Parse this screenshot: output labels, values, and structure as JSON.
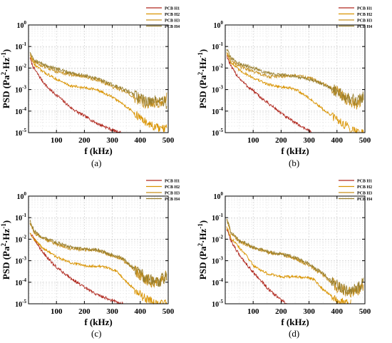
{
  "figure": {
    "captions": [
      "(a)",
      "(b)",
      "(c)",
      "(d)"
    ]
  },
  "chart_data": [
    {
      "type": "line",
      "panel": "(a)",
      "xlabel": "f (kHz)",
      "ylabel_parts": [
        "PSD (Pa",
        "2",
        "·Hz",
        "-1",
        ")"
      ],
      "xlim": [
        0,
        500
      ],
      "ylim": [
        1e-05,
        1
      ],
      "yscale": "log",
      "xticks": [
        "100",
        "200",
        "300",
        "400",
        "500"
      ],
      "yticks": [
        {
          "base": "10",
          "exp": "-5"
        },
        {
          "base": "10",
          "exp": "-4"
        },
        {
          "base": "10",
          "exp": "-3"
        },
        {
          "base": "10",
          "exp": "-2"
        },
        {
          "base": "10",
          "exp": "-1"
        },
        {
          "base": "10",
          "exp": "0"
        }
      ],
      "grid": true,
      "legend": "top-right",
      "series": [
        {
          "name": "PCB H1",
          "color": "#b0281e",
          "noise": 0.07,
          "x": [
            5,
            15,
            30,
            50,
            70,
            90,
            110,
            130,
            150,
            170,
            190,
            210,
            230,
            250,
            270,
            290,
            310,
            330
          ],
          "y": [
            0.03,
            0.012,
            0.006,
            0.0025,
            0.0012,
            0.0007,
            0.00045,
            0.00025,
            0.00015,
            0.0001,
            7e-05,
            5e-05,
            3.5e-05,
            2.5e-05,
            2e-05,
            1.5e-05,
            1.2e-05,
            1e-05
          ]
        },
        {
          "name": "PCB H2",
          "color": "#d99300",
          "noise": 0.06,
          "x": [
            5,
            20,
            50,
            100,
            150,
            200,
            230,
            260,
            280,
            300,
            330,
            360,
            390,
            420,
            450,
            470,
            485,
            495
          ],
          "y": [
            0.04,
            0.015,
            0.007,
            0.003,
            0.0015,
            0.0012,
            0.0011,
            0.0008,
            0.0006,
            0.00045,
            0.00025,
            0.00013,
            6e-05,
            3e-05,
            1.8e-05,
            1.5e-05,
            1.5e-05,
            1.5e-05
          ]
        },
        {
          "name": "PCB H3",
          "color": "#c8901e",
          "noise": 0.08,
          "x": [
            5,
            20,
            50,
            100,
            150,
            200,
            250,
            300,
            350,
            400,
            430,
            450,
            470,
            485,
            495
          ],
          "y": [
            0.05,
            0.02,
            0.012,
            0.007,
            0.005,
            0.004,
            0.0027,
            0.0014,
            0.0007,
            0.0003,
            0.00022,
            0.00025,
            0.00022,
            0.0003,
            0.0004
          ]
        },
        {
          "name": "PCB H4",
          "color": "#9a8030",
          "noise": 0.08,
          "x": [
            5,
            20,
            50,
            100,
            150,
            200,
            250,
            300,
            350,
            400,
            430,
            450,
            470,
            485,
            495
          ],
          "y": [
            0.06,
            0.025,
            0.015,
            0.009,
            0.006,
            0.0045,
            0.003,
            0.0017,
            0.0009,
            0.0004,
            0.00028,
            0.0003,
            0.0003,
            0.0003,
            0.0002
          ]
        }
      ]
    },
    {
      "type": "line",
      "panel": "(b)",
      "xlabel": "f (kHz)",
      "ylabel_parts": [
        "PSD (Pa",
        "2",
        "·Hz",
        "-1",
        ")"
      ],
      "xlim": [
        0,
        500
      ],
      "ylim": [
        1e-05,
        1
      ],
      "yscale": "log",
      "xticks": [
        "100",
        "200",
        "300",
        "400",
        "500"
      ],
      "yticks": [
        {
          "base": "10",
          "exp": "-5"
        },
        {
          "base": "10",
          "exp": "-4"
        },
        {
          "base": "10",
          "exp": "-3"
        },
        {
          "base": "10",
          "exp": "-2"
        },
        {
          "base": "10",
          "exp": "-1"
        },
        {
          "base": "10",
          "exp": "0"
        }
      ],
      "grid": true,
      "legend": "top-right",
      "series": [
        {
          "name": "PCB H1",
          "color": "#b0281e",
          "noise": 0.07,
          "x": [
            5,
            20,
            40,
            60,
            80,
            100,
            120,
            150,
            180,
            200,
            220,
            250,
            270,
            290,
            310
          ],
          "y": [
            0.04,
            0.012,
            0.005,
            0.0025,
            0.0014,
            0.0009,
            0.0005,
            0.00025,
            0.00013,
            8e-05,
            5e-05,
            3e-05,
            2e-05,
            1.5e-05,
            1e-05
          ]
        },
        {
          "name": "PCB H2",
          "color": "#d99300",
          "noise": 0.06,
          "x": [
            5,
            20,
            50,
            100,
            150,
            200,
            230,
            260,
            300,
            350,
            400,
            450,
            480,
            495
          ],
          "y": [
            0.05,
            0.018,
            0.008,
            0.0035,
            0.0018,
            0.0013,
            0.0012,
            0.0009,
            0.0004,
            0.00012,
            4e-05,
            1.5e-05,
            1e-05,
            1e-05
          ]
        },
        {
          "name": "PCB H3",
          "color": "#c8901e",
          "noise": 0.08,
          "x": [
            5,
            20,
            50,
            100,
            150,
            200,
            250,
            300,
            350,
            400,
            430,
            450,
            470,
            485,
            495
          ],
          "y": [
            0.06,
            0.02,
            0.012,
            0.007,
            0.004,
            0.004,
            0.0045,
            0.0035,
            0.002,
            0.0008,
            0.0004,
            0.0003,
            0.0002,
            0.0003,
            0.0004
          ]
        },
        {
          "name": "PCB H4",
          "color": "#9a8030",
          "noise": 0.08,
          "x": [
            5,
            20,
            50,
            100,
            150,
            200,
            250,
            300,
            350,
            400,
            430,
            450,
            470,
            485,
            495
          ],
          "y": [
            0.08,
            0.03,
            0.016,
            0.01,
            0.006,
            0.005,
            0.004,
            0.003,
            0.0018,
            0.0008,
            0.0004,
            0.00035,
            0.0003,
            0.0004,
            0.0005
          ]
        }
      ]
    },
    {
      "type": "line",
      "panel": "(c)",
      "xlabel": "f (kHz)",
      "ylabel_parts": [
        "PSD (Pa",
        "2",
        "·Hz",
        "-1",
        ")"
      ],
      "xlim": [
        0,
        500
      ],
      "ylim": [
        1e-05,
        1
      ],
      "yscale": "log",
      "xticks": [
        "100",
        "200",
        "300",
        "400",
        "500"
      ],
      "yticks": [
        {
          "base": "10",
          "exp": "-5"
        },
        {
          "base": "10",
          "exp": "-4"
        },
        {
          "base": "10",
          "exp": "-3"
        },
        {
          "base": "10",
          "exp": "-2"
        },
        {
          "base": "10",
          "exp": "-1"
        },
        {
          "base": "10",
          "exp": "0"
        }
      ],
      "grid": true,
      "legend": "top-right",
      "series": [
        {
          "name": "PCB H1",
          "color": "#b0281e",
          "noise": 0.07,
          "x": [
            5,
            20,
            40,
            60,
            80,
            100,
            130,
            160,
            190,
            220,
            250,
            280,
            310,
            330,
            340
          ],
          "y": [
            0.02,
            0.01,
            0.004,
            0.0018,
            0.0009,
            0.0005,
            0.00025,
            0.00013,
            7e-05,
            4e-05,
            2.5e-05,
            1.8e-05,
            1.3e-05,
            1e-05,
            1e-05
          ]
        },
        {
          "name": "PCB H2",
          "color": "#d99300",
          "noise": 0.06,
          "x": [
            5,
            20,
            50,
            100,
            150,
            200,
            250,
            280,
            300,
            320,
            340,
            370,
            400,
            430,
            450,
            470,
            485,
            495
          ],
          "y": [
            0.02,
            0.01,
            0.004,
            0.0015,
            0.0008,
            0.0006,
            0.00055,
            0.0005,
            0.0004,
            0.0003,
            0.00015,
            6e-05,
            2.5e-05,
            1.5e-05,
            1.2e-05,
            1e-05,
            1e-05,
            1e-05
          ]
        },
        {
          "name": "PCB H3",
          "color": "#c8901e",
          "noise": 0.08,
          "x": [
            5,
            20,
            50,
            100,
            150,
            200,
            250,
            300,
            330,
            350,
            400,
            430,
            450,
            470,
            485,
            495
          ],
          "y": [
            0.06,
            0.02,
            0.011,
            0.006,
            0.0035,
            0.0033,
            0.003,
            0.0016,
            0.0013,
            0.0008,
            0.00022,
            0.00012,
            9e-05,
            0.0001,
            0.00015,
            0.0002
          ]
        },
        {
          "name": "PCB H4",
          "color": "#9a8030",
          "noise": 0.08,
          "x": [
            5,
            20,
            50,
            100,
            150,
            200,
            250,
            300,
            330,
            350,
            400,
            430,
            450,
            470,
            485,
            495
          ],
          "y": [
            0.07,
            0.025,
            0.012,
            0.007,
            0.0042,
            0.0035,
            0.0032,
            0.0018,
            0.0014,
            0.0009,
            0.00025,
            0.00013,
            0.0001,
            0.00012,
            0.00016,
            0.00022
          ]
        }
      ]
    },
    {
      "type": "line",
      "panel": "(d)",
      "xlabel": "f (kHz)",
      "ylabel_parts": [
        "PSD (Pa",
        "2",
        "·Hz",
        "-1",
        ")"
      ],
      "xlim": [
        0,
        500
      ],
      "ylim": [
        1e-05,
        1
      ],
      "yscale": "log",
      "xticks": [
        "100",
        "200",
        "300",
        "400",
        "500"
      ],
      "yticks": [
        {
          "base": "10",
          "exp": "-5"
        },
        {
          "base": "10",
          "exp": "-4"
        },
        {
          "base": "10",
          "exp": "-3"
        },
        {
          "base": "10",
          "exp": "-2"
        },
        {
          "base": "10",
          "exp": "-1"
        },
        {
          "base": "10",
          "exp": "0"
        }
      ],
      "grid": true,
      "legend": "top-right",
      "series": [
        {
          "name": "PCB H1",
          "color": "#b0281e",
          "noise": 0.07,
          "x": [
            5,
            20,
            40,
            60,
            80,
            100,
            120,
            140,
            160,
            180,
            200,
            220
          ],
          "y": [
            0.03,
            0.009,
            0.003,
            0.0013,
            0.0006,
            0.0003,
            0.00015,
            8e-05,
            4e-05,
            2.5e-05,
            1.5e-05,
            1e-05
          ]
        },
        {
          "name": "PCB H2",
          "color": "#d99300",
          "noise": 0.06,
          "x": [
            5,
            20,
            50,
            80,
            100,
            150,
            200,
            250,
            300,
            320,
            340,
            370,
            400,
            430,
            450
          ],
          "y": [
            0.04,
            0.012,
            0.004,
            0.0015,
            0.0006,
            0.00025,
            0.00018,
            0.00018,
            0.00016,
            0.00013,
            6e-05,
            3e-05,
            1.6e-05,
            1.1e-05,
            1e-05
          ]
        },
        {
          "name": "PCB H3",
          "color": "#c8901e",
          "noise": 0.08,
          "x": [
            5,
            20,
            50,
            100,
            150,
            200,
            250,
            300,
            350,
            400,
            430,
            450,
            470,
            485,
            495
          ],
          "y": [
            0.08,
            0.02,
            0.008,
            0.004,
            0.0025,
            0.002,
            0.0013,
            0.0006,
            0.00022,
            6e-05,
            4e-05,
            3.5e-05,
            4e-05,
            6e-05,
            8e-05
          ]
        },
        {
          "name": "PCB H4",
          "color": "#9a8030",
          "noise": 0.08,
          "x": [
            5,
            20,
            50,
            100,
            150,
            200,
            250,
            300,
            350,
            400,
            430,
            450,
            470,
            485,
            495
          ],
          "y": [
            0.09,
            0.022,
            0.009,
            0.0042,
            0.0026,
            0.0021,
            0.0014,
            0.0007,
            0.00025,
            7e-05,
            4.5e-05,
            4e-05,
            4.5e-05,
            7e-05,
            0.0001
          ]
        }
      ]
    }
  ]
}
